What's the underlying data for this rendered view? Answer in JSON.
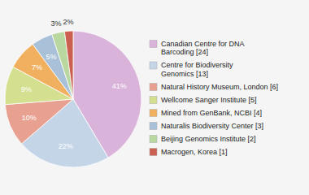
{
  "chart_data": {
    "type": "pie",
    "categories": [
      "Canadian Centre for DNA\nBarcoding [24]",
      "Centre for Biodiversity\nGenomics [13]",
      "Natural History Museum, London [6]",
      "Wellcome Sanger Institute [5]",
      "Mined from GenBank, NCBI [4]",
      "Naturalis Biodiversity Center [3]",
      "Beijing Genomics Institute [2]",
      "Macrogen, Korea [1]"
    ],
    "values": [
      41,
      22,
      10,
      9,
      7,
      5,
      3,
      2
    ],
    "value_labels": [
      "41%",
      "22%",
      "10%",
      "9%",
      "7%",
      "5%",
      "3%",
      "2%"
    ],
    "colors": [
      "#d9b3d9",
      "#c5d5e8",
      "#e8a090",
      "#d4df90",
      "#f0b060",
      "#a8c0d8",
      "#b8d8a0",
      "#cc6050"
    ],
    "data_labels": true,
    "legend": "right"
  }
}
